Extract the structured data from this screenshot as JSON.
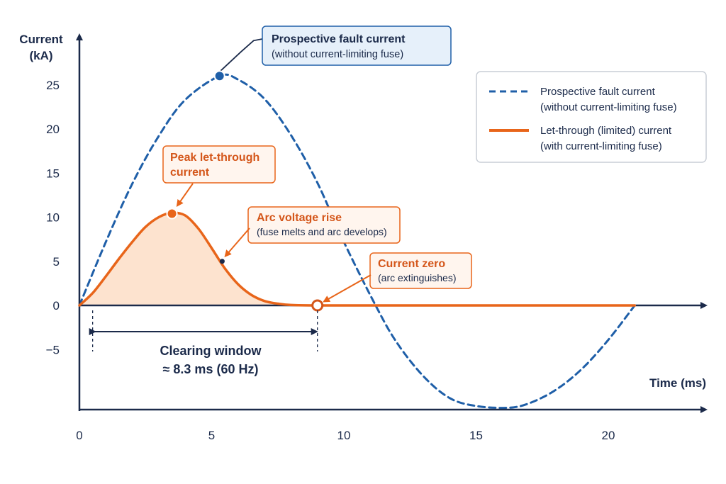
{
  "chart_data": {
    "type": "line",
    "title": "",
    "ylabel_line1": "Current",
    "ylabel_line2": "(kA)",
    "xlabel": "Time (ms)",
    "xlim": [
      0,
      24
    ],
    "ylim": [
      -11.5,
      28
    ],
    "x_ticks": [
      "0",
      "5",
      "10",
      "15",
      "20"
    ],
    "x_tick_values": [
      0,
      5,
      10,
      15,
      20
    ],
    "y_ticks": [
      "25",
      "20",
      "15",
      "10",
      "5",
      "0",
      "−5"
    ],
    "y_tick_values": [
      25,
      20,
      15,
      10,
      5,
      0,
      -5
    ],
    "colors": {
      "prospective": "#1f5fa8",
      "letthrough": "#e8651a",
      "fill": "#fde3cf",
      "axis": "#1b2a4a"
    },
    "series": [
      {
        "name": "Prospective fault current (without current-limiting fuse)",
        "style": "dashed",
        "x": [
          0,
          1,
          2,
          3,
          4,
          5.3,
          6,
          7,
          8,
          9,
          10,
          11.2,
          12,
          13,
          14,
          15,
          16.2,
          17,
          18,
          19,
          20,
          21
        ],
        "y": [
          0,
          7.2,
          13.8,
          19.2,
          23.3,
          26,
          25.6,
          23.4,
          19.3,
          13.9,
          7.2,
          0,
          -4.2,
          -8.0,
          -10.5,
          -11.4,
          -11.6,
          -11.1,
          -9.6,
          -7.2,
          -3.9,
          0
        ]
      },
      {
        "name": "Let-through (limited) current (with current-limiting fuse)",
        "style": "solid",
        "x": [
          0,
          0.5,
          1,
          1.5,
          2,
          2.5,
          3,
          3.5,
          4,
          4.5,
          5,
          5.5,
          6,
          6.5,
          7,
          7.5,
          8,
          9,
          12,
          16,
          21
        ],
        "y": [
          0,
          1.4,
          3.3,
          5.3,
          7.2,
          8.9,
          10.0,
          10.5,
          10.2,
          8.7,
          6.5,
          4.2,
          2.4,
          1.2,
          0.5,
          0.2,
          0.05,
          0,
          0,
          0,
          0
        ]
      }
    ],
    "annotations": {
      "prospective_peak": {
        "title": "Prospective fault current",
        "sub": "(without current-limiting fuse)",
        "x": 5.3,
        "y": 26
      },
      "peak_letthrough": {
        "line1": "Peak let-through",
        "line2": "current",
        "x": 3.5,
        "y": 10.4
      },
      "arc_voltage": {
        "title": "Arc voltage rise",
        "sub": "(fuse melts and arc develops)",
        "x": 5.4,
        "y": 5.0
      },
      "current_zero": {
        "title": "Current zero",
        "sub": "(arc extinguishes)",
        "x": 9.0,
        "y": 0
      },
      "clearing_window": {
        "line1": "Clearing window",
        "line2": "≈ 8.3 ms (60 Hz)",
        "x_start": 0.5,
        "x_end": 9.0
      }
    },
    "legend": {
      "placement": "top-right",
      "items": [
        {
          "line1": "Prospective fault current",
          "line2": "(without current-limiting fuse)"
        },
        {
          "line1": "Let-through (limited) current",
          "line2": "(with current-limiting fuse)"
        }
      ]
    }
  }
}
